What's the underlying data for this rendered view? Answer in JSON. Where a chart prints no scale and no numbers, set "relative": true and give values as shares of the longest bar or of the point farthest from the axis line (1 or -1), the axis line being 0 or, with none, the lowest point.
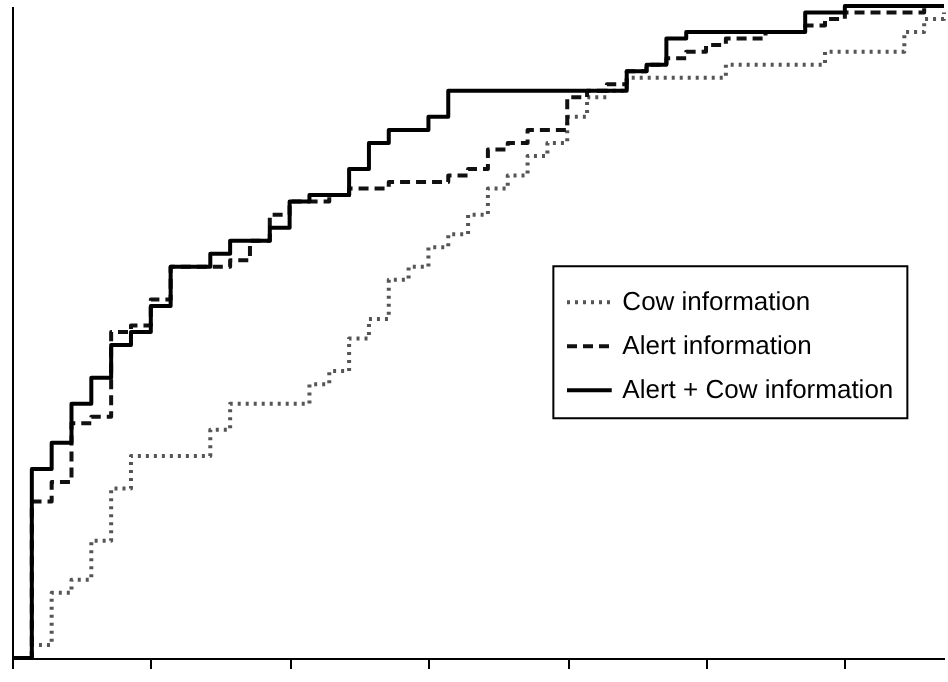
{
  "chart_data": {
    "type": "step",
    "relative": true,
    "legend": "right",
    "categories": [
      null,
      null,
      null,
      null,
      null,
      null,
      null,
      null,
      null,
      null,
      null,
      null,
      null,
      null,
      null,
      null,
      null,
      null,
      null,
      null,
      null,
      null,
      null,
      null,
      null,
      null,
      null,
      null,
      null,
      null,
      null,
      null,
      null,
      null,
      null,
      null,
      null,
      null,
      null,
      null,
      null,
      null,
      null,
      null,
      null,
      null,
      null,
      null
    ],
    "series": [
      {
        "name": "Cow information",
        "color": "#555555",
        "line_style": "dotted",
        "values": [
          0,
          0.02,
          0.1,
          0.12,
          0.18,
          0.26,
          0.31,
          0.31,
          0.31,
          0.31,
          0.35,
          0.39,
          0.39,
          0.39,
          0.39,
          0.42,
          0.44,
          0.49,
          0.52,
          0.58,
          0.6,
          0.63,
          0.65,
          0.68,
          0.72,
          0.74,
          0.77,
          0.79,
          0.83,
          0.86,
          0.87,
          0.89,
          0.89,
          0.89,
          0.89,
          0.89,
          0.91,
          0.91,
          0.91,
          0.91,
          0.91,
          0.93,
          0.93,
          0.93,
          0.93,
          0.96,
          0.98,
          0.99
        ]
      },
      {
        "name": "Alert information",
        "color": "#111111",
        "line_style": "dashed",
        "values": [
          0,
          0.24,
          0.27,
          0.36,
          0.37,
          0.5,
          0.51,
          0.55,
          0.6,
          0.6,
          0.6,
          0.61,
          0.64,
          0.68,
          0.7,
          0.7,
          0.71,
          0.72,
          0.72,
          0.73,
          0.73,
          0.73,
          0.74,
          0.75,
          0.78,
          0.79,
          0.81,
          0.81,
          0.86,
          0.87,
          0.88,
          0.9,
          0.91,
          0.92,
          0.93,
          0.94,
          0.95,
          0.95,
          0.96,
          0.96,
          0.97,
          0.98,
          0.99,
          0.99,
          0.99,
          0.99,
          1.0,
          1.0
        ]
      },
      {
        "name": "Alert + Cow information",
        "color": "#000000",
        "line_style": "solid",
        "values": [
          0,
          0.29,
          0.33,
          0.39,
          0.43,
          0.48,
          0.5,
          0.54,
          0.6,
          0.6,
          0.62,
          0.64,
          0.64,
          0.66,
          0.7,
          0.71,
          0.71,
          0.75,
          0.79,
          0.81,
          0.81,
          0.83,
          0.87,
          0.87,
          0.87,
          0.87,
          0.87,
          0.87,
          0.87,
          0.87,
          0.87,
          0.9,
          0.91,
          0.95,
          0.96,
          0.96,
          0.96,
          0.96,
          0.96,
          0.96,
          0.99,
          0.99,
          1.0,
          1.0,
          1.0,
          1.0,
          1.0,
          1.0
        ]
      }
    ]
  }
}
